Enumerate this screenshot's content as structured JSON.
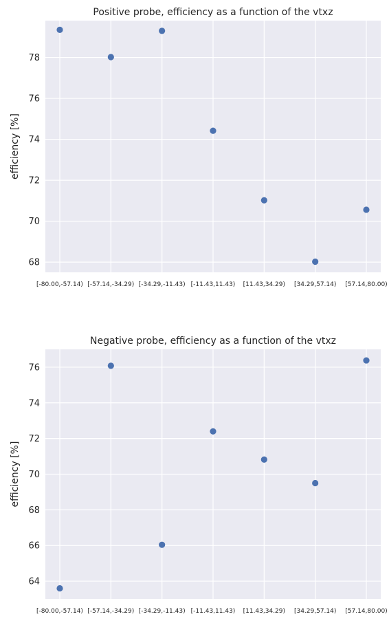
{
  "chart_data": [
    {
      "type": "scatter",
      "title": "Positive probe, efficiency as a function of the vtxz",
      "ylabel": "efficiency [%]",
      "xlabel": "",
      "categories": [
        "[-80.00,-57.14)",
        "[-57.14,-34.29)",
        "[-34.29,-11.43)",
        "[-11.43,11.43)",
        "[11.43,34.29)",
        "[34.29,57.14)",
        "[57.14,80.00)"
      ],
      "values": [
        79.35,
        78.02,
        79.3,
        74.42,
        71.02,
        68.02,
        70.56
      ],
      "ylim": [
        67.5,
        79.8
      ],
      "yticks": [
        68,
        70,
        72,
        74,
        76,
        78
      ],
      "grid": true,
      "color": "#4c72b0",
      "background": "#eaeaf2"
    },
    {
      "type": "scatter",
      "title": "Negative probe, efficiency as a function of the vtxz",
      "ylabel": "efficiency [%]",
      "xlabel": "",
      "categories": [
        "[-80.00,-57.14)",
        "[-57.14,-34.29)",
        "[-34.29,-11.43)",
        "[-11.43,11.43)",
        "[11.43,34.29)",
        "[34.29,57.14)",
        "[57.14,80.00)"
      ],
      "values": [
        63.6,
        76.08,
        66.04,
        72.4,
        70.82,
        69.5,
        76.38
      ],
      "ylim": [
        63.0,
        77.0
      ],
      "yticks": [
        64,
        66,
        68,
        70,
        72,
        74,
        76
      ],
      "grid": true,
      "color": "#4c72b0",
      "background": "#eaeaf2"
    }
  ]
}
